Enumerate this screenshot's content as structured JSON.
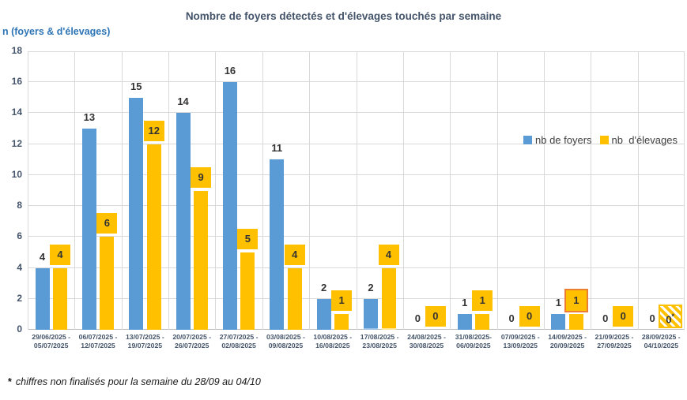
{
  "footnote": {
    "marker": "*",
    "text": "chiffres non finalisés pour la semaine du 28/09 au 04/10"
  },
  "colors": {
    "foyers": "#5B9BD5",
    "elevages": "#FFC000",
    "grid": "#D9D9D9",
    "axis_line": "#BFBFBF",
    "title_text": "#44546A",
    "axis_text": "#44546A",
    "unit_label_text": "#2E75B6",
    "data_label_text": "#333333",
    "legend_text": "#404040",
    "highlight_border": "#ED7D31",
    "selected_strip_foyers": "#9DC3E6",
    "selected_strip_elevages": "#FFE699"
  },
  "chart_data": {
    "type": "bar",
    "title": "Nombre de foyers détectés et d'élevages touchés par semaine",
    "ylabel": "n (foyers & d'élevages)",
    "xlabel": "",
    "ylim": [
      0,
      18
    ],
    "yticks": [
      0,
      2,
      4,
      6,
      8,
      10,
      12,
      14,
      16,
      18
    ],
    "grid": true,
    "legend_position": "right-inside",
    "categories": [
      [
        "29/06/2025 -",
        "05/07/2025"
      ],
      [
        "06/07/2025 -",
        "12/07/2025"
      ],
      [
        "13/07/2025 -",
        "19/07/2025"
      ],
      [
        "20/07/2025 -",
        "26/07/2025"
      ],
      [
        "27/07/2025 -",
        "02/08/2025"
      ],
      [
        "03/08/2025 -",
        "09/08/2025"
      ],
      [
        "10/08/2025 -",
        "16/08/2025"
      ],
      [
        "17/08/2025 -",
        "23/08/2025"
      ],
      [
        "24/08/2025 -",
        "30/08/2025"
      ],
      [
        "31/08/2025-",
        "06/09/2025"
      ],
      [
        "07/09/2025 -",
        "13/09/2025"
      ],
      [
        "14/09/2025 -",
        "20/09/2025"
      ],
      [
        "21/09/2025 -",
        "27/09/2025"
      ],
      [
        "28/09/2025 -",
        "04/10/2025"
      ]
    ],
    "series": [
      {
        "name": "nb de foyers",
        "color": "#5B9BD5",
        "values": [
          4,
          13,
          15,
          14,
          16,
          11,
          2,
          2,
          0,
          1,
          0,
          1,
          0,
          0
        ],
        "labels": [
          "4",
          "13",
          "15",
          "14",
          "16",
          "11",
          "2",
          "2",
          "0",
          "1",
          "0",
          "1",
          "0",
          "0"
        ]
      },
      {
        "name": "nb  d'élevages",
        "color": "#FFC000",
        "values": [
          4,
          6,
          12,
          9,
          5,
          4,
          1,
          4,
          0,
          1,
          0,
          1,
          0,
          0
        ],
        "labels": [
          "4",
          "6",
          "12",
          "9",
          "5",
          "4",
          "1",
          "4",
          "0",
          "1",
          "0",
          "1",
          "0",
          "0*"
        ],
        "label_box": true
      }
    ],
    "annotations": {
      "highlight_box_index": 11,
      "hatched_box_index": 13,
      "selected_category_index": 7
    }
  }
}
